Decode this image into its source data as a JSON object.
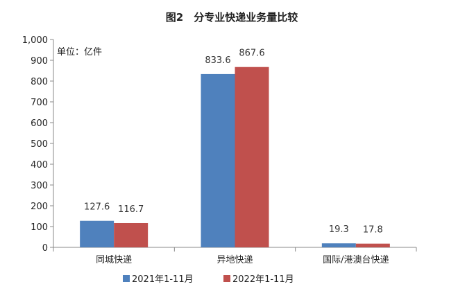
{
  "chart_data": {
    "type": "bar",
    "title": "图2　分专业快递业务量比较",
    "unit_label": "单位：亿件",
    "categories": [
      "同城快递",
      "异地快递",
      "国际/港澳台快递"
    ],
    "series": [
      {
        "name": "2021年1-11月",
        "color": "#4f81bd",
        "values": [
          127.6,
          833.6,
          19.3
        ],
        "labels": [
          "127.6",
          "833.6",
          "19.3"
        ]
      },
      {
        "name": "2022年1-11月",
        "color": "#c0504d",
        "values": [
          116.7,
          867.6,
          17.8
        ],
        "labels": [
          "116.7",
          "867.6",
          "17.8"
        ]
      }
    ],
    "ylim": [
      0,
      1000
    ],
    "yticks": [
      0,
      100,
      200,
      300,
      400,
      500,
      600,
      700,
      800,
      900,
      1000
    ],
    "ytick_labels": [
      "0",
      "100",
      "200",
      "300",
      "400",
      "500",
      "600",
      "700",
      "800",
      "900",
      "1,000"
    ],
    "xlabel": "",
    "ylabel": "",
    "grid": false,
    "legend": "bottom"
  }
}
